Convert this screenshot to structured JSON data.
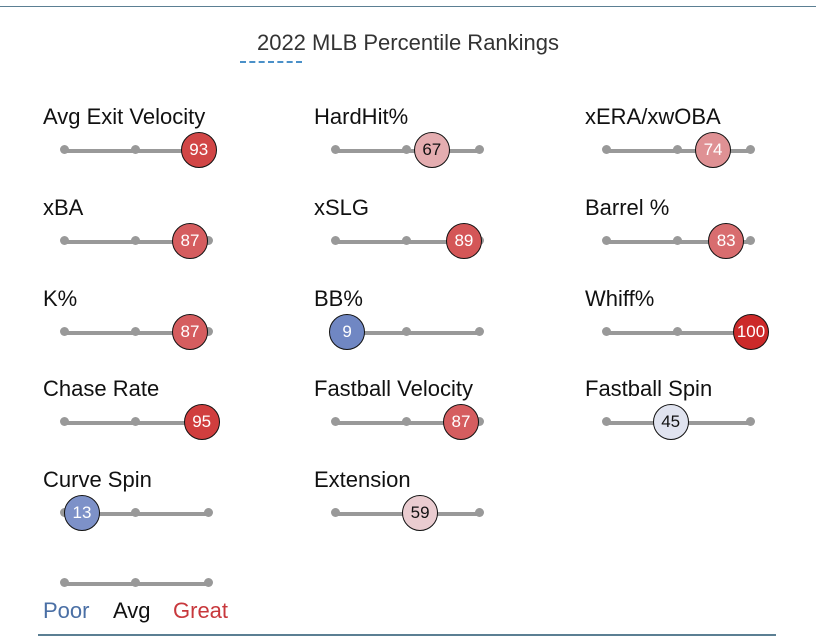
{
  "title": "2022 MLB Percentile Rankings",
  "colors": {
    "poor": "#4a6fa5",
    "avg": "#111111",
    "great": "#c8383c",
    "track": "#999999"
  },
  "metrics": [
    {
      "label": "Avg Exit Velocity",
      "percentile": 93
    },
    {
      "label": "HardHit%",
      "percentile": 67
    },
    {
      "label": "xERA/xwOBA",
      "percentile": 74
    },
    {
      "label": "xBA",
      "percentile": 87
    },
    {
      "label": "xSLG",
      "percentile": 89
    },
    {
      "label": "Barrel %",
      "percentile": 83
    },
    {
      "label": "K%",
      "percentile": 87
    },
    {
      "label": "BB%",
      "percentile": 9
    },
    {
      "label": "Whiff%",
      "percentile": 100
    },
    {
      "label": "Chase Rate",
      "percentile": 95
    },
    {
      "label": "Fastball Velocity",
      "percentile": 87
    },
    {
      "label": "Fastball Spin",
      "percentile": 45
    },
    {
      "label": "Curve Spin",
      "percentile": 13
    },
    {
      "label": "Extension",
      "percentile": 59
    }
  ],
  "legend": {
    "poor": "Poor",
    "avg": "Avg",
    "great": "Great"
  }
}
